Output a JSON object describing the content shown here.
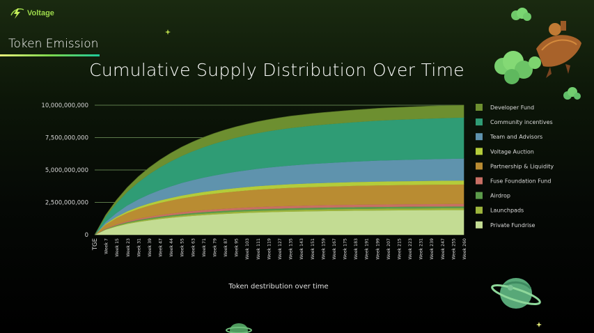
{
  "brand": {
    "name": "Voltage"
  },
  "section": {
    "title": "Token Emission"
  },
  "colors": {
    "accent": "#9cd84a",
    "background_top": "#1a2a10",
    "background_bottom": "#000000"
  },
  "icons": [
    "bolt-logo-icon",
    "astronaut-rocket-illustration",
    "planet-illustration",
    "sparkle-icon"
  ],
  "chart_data": {
    "type": "area",
    "stacked": true,
    "title": "Cumulative Supply Distribution Over Time",
    "xlabel": "Token destribution over time",
    "ylabel": "",
    "ylim": [
      0,
      10000000000
    ],
    "yticks": [
      0,
      2500000000,
      5000000000,
      7500000000,
      10000000000
    ],
    "ytick_labels": [
      "0",
      "2,500,000,000",
      "5,000,000,000",
      "7,500,000,000",
      "10,000,000,000"
    ],
    "x_tick_labels": [
      "TGE",
      "Week 7",
      "Week 15",
      "Week 23",
      "Week 31",
      "Week 39",
      "Week 47",
      "Week 44",
      "Week 55",
      "Week 63",
      "Week 71",
      "Week 79",
      "Week 87",
      "Week 95",
      "Week 103",
      "Week 111",
      "Week 119",
      "Week 127",
      "Week 135",
      "Week 143",
      "Week 151",
      "Week 159",
      "Week 167",
      "Week 175",
      "Week 183",
      "Week 191",
      "Week 199",
      "Week 207",
      "Week 215",
      "Week 223",
      "Week 231",
      "Week 239",
      "Week 247",
      "Week 255",
      "Week 260"
    ],
    "grid": true,
    "legend_position": "right",
    "series": [
      {
        "name": "Private Fundrise",
        "color": "#c3dc93",
        "values": [
          0,
          400000000,
          650000000,
          850000000,
          1000000000,
          1120000000,
          1230000000,
          1320000000,
          1400000000,
          1470000000,
          1530000000,
          1580000000,
          1625000000,
          1665000000,
          1700000000,
          1730000000,
          1755000000,
          1775000000,
          1795000000,
          1810000000,
          1825000000,
          1838000000,
          1850000000,
          1860000000,
          1870000000,
          1878000000,
          1885000000,
          1892000000,
          1898000000,
          1903000000,
          1908000000,
          1912000000,
          1916000000,
          1919000000,
          1920000000
        ]
      },
      {
        "name": "Launchpads",
        "color": "#9db53c",
        "values": [
          0,
          30000000,
          50000000,
          65000000,
          75000000,
          85000000,
          92000000,
          98000000,
          104000000,
          109000000,
          113000000,
          116000000,
          119000000,
          122000000,
          124000000,
          126000000,
          128000000,
          130000000,
          131000000,
          132000000,
          133000000,
          134000000,
          135000000,
          136000000,
          137000000,
          137000000,
          138000000,
          138000000,
          139000000,
          139000000,
          139000000,
          140000000,
          140000000,
          140000000,
          140000000
        ]
      },
      {
        "name": "Airdrop",
        "color": "#5b9a4a",
        "values": [
          0,
          30000000,
          50000000,
          65000000,
          75000000,
          85000000,
          92000000,
          98000000,
          104000000,
          109000000,
          113000000,
          116000000,
          119000000,
          122000000,
          124000000,
          126000000,
          128000000,
          130000000,
          131000000,
          132000000,
          133000000,
          134000000,
          135000000,
          136000000,
          137000000,
          137000000,
          138000000,
          138000000,
          139000000,
          139000000,
          139000000,
          140000000,
          140000000,
          140000000,
          140000000
        ]
      },
      {
        "name": "Fuse Foundation Fund",
        "color": "#c86f64",
        "values": [
          0,
          40000000,
          65000000,
          85000000,
          100000000,
          112000000,
          123000000,
          132000000,
          140000000,
          147000000,
          153000000,
          158000000,
          162000000,
          166000000,
          170000000,
          173000000,
          176000000,
          178000000,
          180000000,
          182000000,
          184000000,
          185000000,
          186000000,
          187000000,
          188000000,
          189000000,
          190000000,
          190000000,
          191000000,
          191000000,
          192000000,
          192000000,
          192000000,
          193000000,
          193000000
        ]
      },
      {
        "name": "Partnership & Liquidity",
        "color": "#b98c32",
        "values": [
          0,
          290000000,
          480000000,
          630000000,
          750000000,
          850000000,
          930000000,
          1000000000,
          1070000000,
          1120000000,
          1170000000,
          1210000000,
          1250000000,
          1280000000,
          1310000000,
          1340000000,
          1360000000,
          1380000000,
          1400000000,
          1410000000,
          1420000000,
          1430000000,
          1440000000,
          1450000000,
          1460000000,
          1465000000,
          1470000000,
          1475000000,
          1480000000,
          1485000000,
          1490000000,
          1492000000,
          1495000000,
          1498000000,
          1500000000
        ]
      },
      {
        "name": "Voltage Auction",
        "color": "#b4cc3a",
        "values": [
          0,
          60000000,
          100000000,
          130000000,
          155000000,
          175000000,
          190000000,
          205000000,
          218000000,
          228000000,
          237000000,
          245000000,
          252000000,
          258000000,
          263000000,
          268000000,
          272000000,
          275000000,
          278000000,
          281000000,
          283000000,
          285000000,
          287000000,
          289000000,
          290000000,
          291000000,
          292000000,
          293000000,
          294000000,
          295000000,
          296000000,
          297000000,
          298000000,
          299000000,
          300000000
        ]
      },
      {
        "name": "Team and Advisors",
        "color": "#5f93ad",
        "values": [
          0,
          150000000,
          300000000,
          450000000,
          580000000,
          700000000,
          800000000,
          890000000,
          970000000,
          1040000000,
          1100000000,
          1160000000,
          1210000000,
          1260000000,
          1300000000,
          1340000000,
          1380000000,
          1410000000,
          1440000000,
          1470000000,
          1500000000,
          1520000000,
          1540000000,
          1560000000,
          1580000000,
          1600000000,
          1620000000,
          1630000000,
          1640000000,
          1650000000,
          1660000000,
          1670000000,
          1680000000,
          1690000000,
          1700000000
        ]
      },
      {
        "name": "Community incentives",
        "color": "#2f9c75",
        "values": [
          0,
          400000000,
          750000000,
          1050000000,
          1320000000,
          1550000000,
          1750000000,
          1930000000,
          2080000000,
          2220000000,
          2340000000,
          2450000000,
          2540000000,
          2620000000,
          2690000000,
          2750000000,
          2800000000,
          2850000000,
          2890000000,
          2920000000,
          2950000000,
          2980000000,
          3000000000,
          3020000000,
          3040000000,
          3060000000,
          3080000000,
          3100000000,
          3110000000,
          3120000000,
          3130000000,
          3140000000,
          3150000000,
          3155000000,
          3160000000
        ]
      },
      {
        "name": "Developer Fund",
        "color": "#6d8f30",
        "values": [
          0,
          120000000,
          230000000,
          330000000,
          420000000,
          500000000,
          570000000,
          630000000,
          680000000,
          720000000,
          760000000,
          790000000,
          820000000,
          840000000,
          860000000,
          880000000,
          890000000,
          900000000,
          910000000,
          915000000,
          920000000,
          925000000,
          930000000,
          933000000,
          936000000,
          939000000,
          942000000,
          944000000,
          946000000,
          948000000,
          950000000,
          951000000,
          952000000,
          953000000,
          954000000
        ]
      }
    ]
  }
}
